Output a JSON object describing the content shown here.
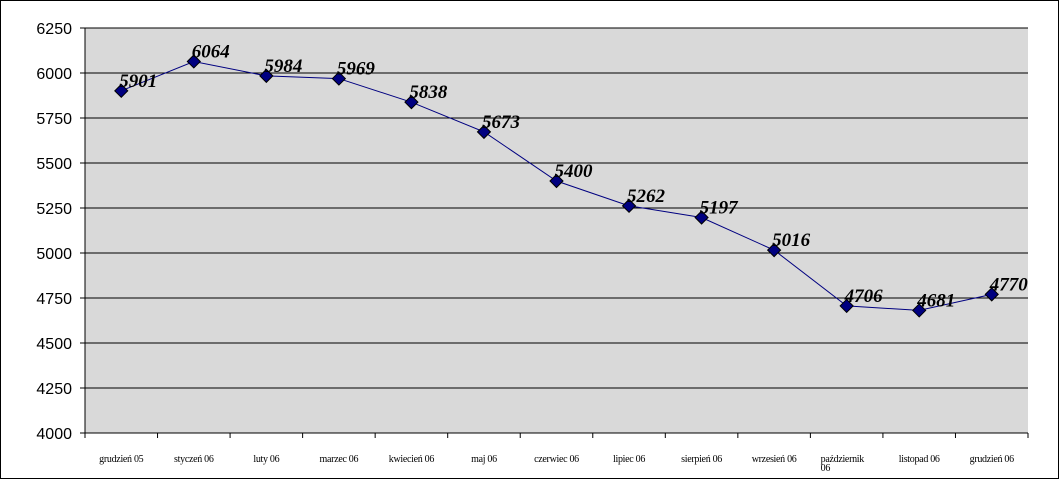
{
  "chart_data": {
    "type": "line",
    "title": "",
    "xlabel": "",
    "ylabel": "",
    "categories": [
      "grudzień 05",
      "styczeń 06",
      "luty 06",
      "marzec 06",
      "kwiecień 06",
      "maj 06",
      "czerwiec 06",
      "lipiec 06",
      "sierpień 06",
      "wrzesień 06",
      "październik 06",
      "listopad 06",
      "grudzień 06"
    ],
    "series": [
      {
        "values": [
          5901,
          6064,
          5984,
          5969,
          5838,
          5673,
          5400,
          5262,
          5197,
          5016,
          4706,
          4681,
          4770
        ]
      }
    ],
    "data_labels": [
      "5901",
      "6064",
      "5984",
      "5969",
      "5838",
      "5673",
      "5400",
      "5262",
      "5197",
      "5016",
      "4706",
      "4681",
      "4770"
    ],
    "ylim": [
      4000,
      6250
    ],
    "yticks": [
      4000,
      4250,
      4500,
      4750,
      5000,
      5250,
      5500,
      5750,
      6000,
      6250
    ],
    "ytick_labels": [
      "4000",
      "4250",
      "4500",
      "4750",
      "5000",
      "5250",
      "5500",
      "5750",
      "6000",
      "6250"
    ],
    "grid": true,
    "legend": "none",
    "colors": {
      "plot_background": "#d9d9d9",
      "line": "#000080",
      "marker": "#000080",
      "gridline": "#000000"
    }
  }
}
